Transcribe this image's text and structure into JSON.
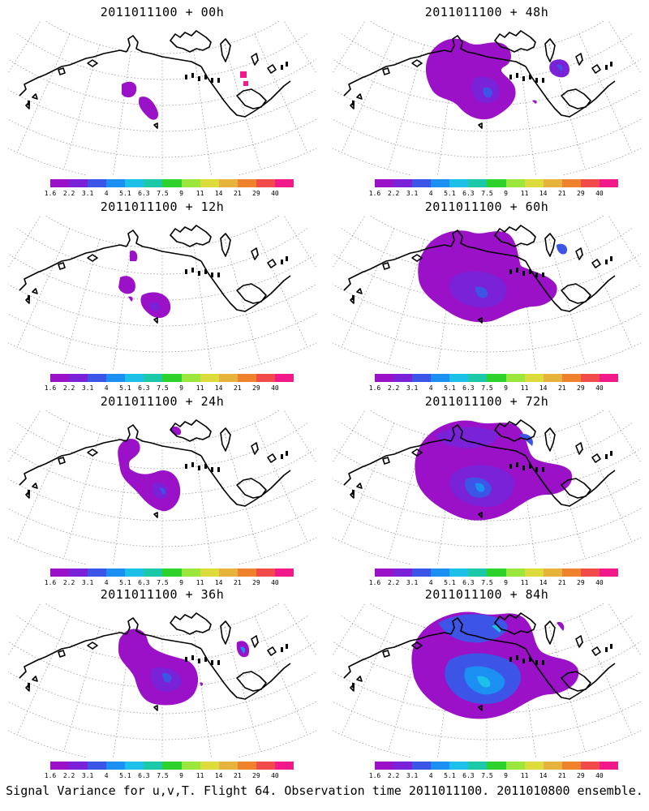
{
  "panels": [
    {
      "title": "2011011100 + 00h",
      "level": 0
    },
    {
      "title": "2011011100 + 48h",
      "level": 4
    },
    {
      "title": "2011011100 + 12h",
      "level": 1
    },
    {
      "title": "2011011100 + 60h",
      "level": 5
    },
    {
      "title": "2011011100 + 24h",
      "level": 2
    },
    {
      "title": "2011011100 + 72h",
      "level": 6
    },
    {
      "title": "2011011100 + 36h",
      "level": 3
    },
    {
      "title": "2011011100 + 84h",
      "level": 7
    }
  ],
  "colorbar": {
    "colors": [
      "#9b11c8",
      "#7a22d8",
      "#3c55e6",
      "#1c8ff2",
      "#1cc0e8",
      "#1cc8a8",
      "#2dd22d",
      "#9be63c",
      "#dcdc3c",
      "#e6b43c",
      "#f0822d",
      "#f04a4a",
      "#f01a8a"
    ],
    "labels": [
      "1.6",
      "2.2",
      "3.1",
      "4",
      "5.1",
      "6.3",
      "7.5",
      "9",
      "11",
      "14",
      "21",
      "29",
      "40"
    ]
  },
  "caption": "Signal Variance for u,v,T. Flight 64. Observation time 2011011100. 2011010800 ensemble."
}
